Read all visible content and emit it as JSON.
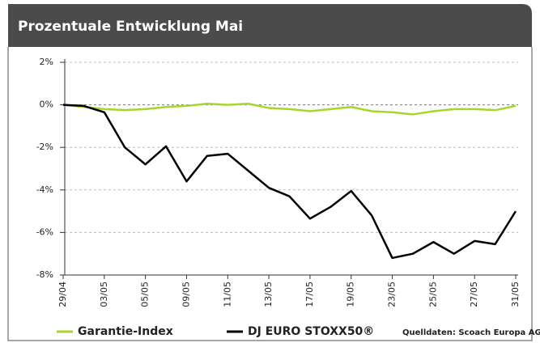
{
  "chart_data": {
    "type": "line",
    "title": "Prozentuale Entwicklung Mai",
    "categories": [
      "29/04",
      null,
      "03/05",
      null,
      "05/05",
      null,
      "09/05",
      null,
      "11/05",
      null,
      "13/05",
      null,
      "17/05",
      null,
      "19/05",
      null,
      "23/05",
      null,
      "25/05",
      null,
      "27/05",
      null,
      "31/05"
    ],
    "series": [
      {
        "name": "Garantie-Index",
        "color": "#a6d62b",
        "values": [
          0,
          -0.1,
          -0.2,
          -0.25,
          -0.2,
          -0.1,
          -0.05,
          0.05,
          0.0,
          0.05,
          -0.15,
          -0.2,
          -0.3,
          -0.2,
          -0.1,
          -0.3,
          -0.35,
          -0.45,
          -0.3,
          -0.2,
          -0.2,
          -0.25,
          -0.05
        ]
      },
      {
        "name": "DJ EURO STOXX50®",
        "color": "#000000",
        "values": [
          0,
          -0.05,
          -0.35,
          -2.0,
          -2.8,
          -1.95,
          -3.6,
          -2.4,
          -2.3,
          -3.1,
          -3.9,
          -4.3,
          -5.35,
          -4.8,
          -4.05,
          -5.2,
          -7.2,
          -7.0,
          -6.45,
          -7.0,
          -6.4,
          -6.55,
          -5.0
        ]
      }
    ],
    "ylim": [
      -8,
      2
    ],
    "yticks": [
      {
        "value": 2,
        "label": "2%"
      },
      {
        "value": 0,
        "label": "0%"
      },
      {
        "value": -2,
        "label": "-2%"
      },
      {
        "value": -4,
        "label": "-4%"
      },
      {
        "value": -6,
        "label": "-6%"
      },
      {
        "value": -8,
        "label": "-8%"
      }
    ],
    "grid": true,
    "source": "Quelldaten: Scoach Europa AG"
  }
}
